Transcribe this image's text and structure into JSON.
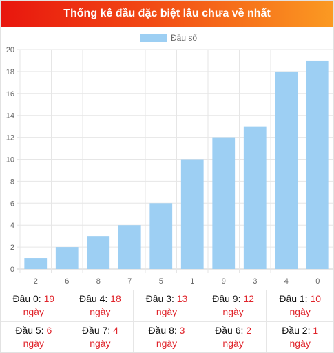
{
  "header": {
    "title": "Thống kê đầu đặc biệt lâu chưa về nhất"
  },
  "colors": {
    "bar": "#9dcff3",
    "accent": "#e0242b",
    "header_start": "#e8160e",
    "header_end": "#fb9a22"
  },
  "chart_data": {
    "type": "bar",
    "categories": [
      "2",
      "6",
      "8",
      "7",
      "5",
      "1",
      "9",
      "3",
      "4",
      "0"
    ],
    "series": [
      {
        "name": "Đầu số",
        "values": [
          1,
          2,
          3,
          4,
          6,
          10,
          12,
          13,
          18,
          19
        ]
      }
    ],
    "ylim": [
      0,
      20
    ],
    "yticks": [
      0,
      2,
      4,
      6,
      8,
      10,
      12,
      14,
      16,
      18,
      20
    ],
    "grid": true,
    "legend_position": "top-center"
  },
  "stats": [
    {
      "label": "Đầu 0:",
      "value": "19",
      "unit": "ngày"
    },
    {
      "label": "Đầu 4:",
      "value": "18",
      "unit": "ngày"
    },
    {
      "label": "Đầu 3:",
      "value": "13",
      "unit": "ngày"
    },
    {
      "label": "Đầu 9:",
      "value": "12",
      "unit": "ngày"
    },
    {
      "label": "Đầu 1:",
      "value": "10",
      "unit": "ngày"
    },
    {
      "label": "Đầu 5:",
      "value": "6",
      "unit": "ngày"
    },
    {
      "label": "Đầu 7:",
      "value": "4",
      "unit": "ngày"
    },
    {
      "label": "Đầu 8:",
      "value": "3",
      "unit": "ngày"
    },
    {
      "label": "Đầu 6:",
      "value": "2",
      "unit": "ngày"
    },
    {
      "label": "Đầu 2:",
      "value": "1",
      "unit": "ngày"
    }
  ]
}
